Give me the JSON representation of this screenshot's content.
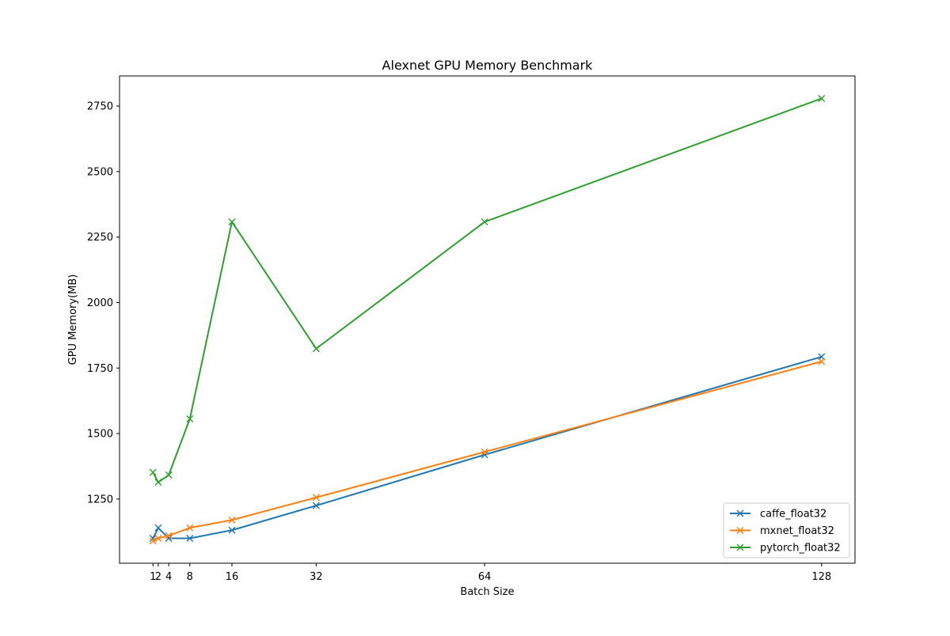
{
  "chart_data": {
    "type": "line",
    "title": "Alexnet GPU Memory Benchmark",
    "xlabel": "Batch Size",
    "ylabel": "GPU Memory(MB)",
    "x": [
      1,
      2,
      4,
      8,
      16,
      32,
      64,
      128
    ],
    "x_ticks": [
      1,
      2,
      4,
      8,
      16,
      32,
      64,
      128
    ],
    "x_tick_labels": [
      "1",
      "2",
      "4",
      "8",
      "16",
      "32",
      "64",
      "128"
    ],
    "y_ticks": [
      1250,
      1500,
      1750,
      2000,
      2250,
      2500,
      2750
    ],
    "y_tick_labels": [
      "1250",
      "1500",
      "1750",
      "2000",
      "2250",
      "2500",
      "2750"
    ],
    "xlim": [
      -5.35,
      134.35
    ],
    "ylim": [
      1005,
      2865
    ],
    "grid": false,
    "legend_position": "lower-right",
    "marker": "x",
    "series": [
      {
        "name": "caffe_float32",
        "color": "#1f77b4",
        "values": [
          1100,
          1140,
          1100,
          1100,
          1131,
          1225,
          1419,
          1793
        ]
      },
      {
        "name": "mxnet_float32",
        "color": "#ff7f0e",
        "values": [
          1090,
          1100,
          1110,
          1140,
          1170,
          1256,
          1430,
          1775
        ]
      },
      {
        "name": "pytorch_float32",
        "color": "#2ca02c",
        "values": [
          1352,
          1314,
          1342,
          1556,
          2308,
          1824,
          2308,
          2779
        ]
      }
    ]
  }
}
